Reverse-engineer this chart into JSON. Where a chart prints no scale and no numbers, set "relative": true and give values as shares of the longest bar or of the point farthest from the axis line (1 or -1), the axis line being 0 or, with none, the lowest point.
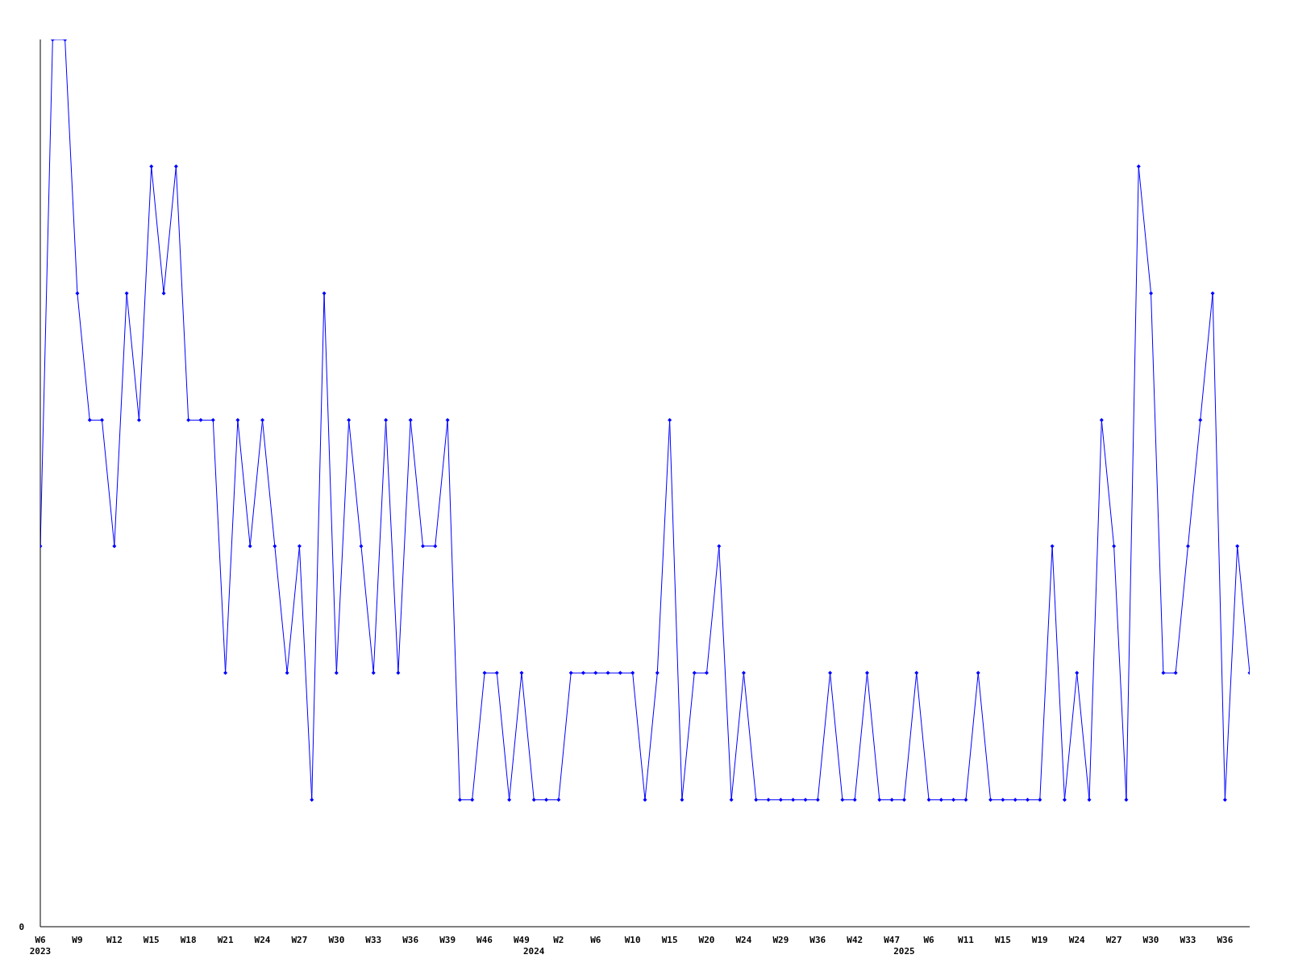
{
  "chart_data": {
    "type": "line",
    "relative": true,
    "marker": "diamond",
    "line_style": "solid",
    "categories": [
      "W6\n2023",
      null,
      null,
      "W9",
      null,
      null,
      "W12",
      null,
      null,
      "W15",
      null,
      null,
      "W18",
      null,
      null,
      "W21",
      null,
      null,
      "W24",
      null,
      null,
      "W27",
      null,
      null,
      "W30",
      null,
      null,
      "W33",
      null,
      null,
      "W36",
      null,
      null,
      "W39",
      null,
      null,
      "W46",
      null,
      null,
      "W49",
      "\n2024",
      null,
      "W2",
      null,
      null,
      "W6",
      null,
      null,
      "W10",
      null,
      null,
      "W15",
      null,
      null,
      "W20",
      null,
      null,
      "W24",
      null,
      null,
      "W29",
      null,
      null,
      "W36",
      null,
      null,
      "W42",
      null,
      null,
      "W47",
      "\n2025",
      null,
      "W6",
      null,
      null,
      "W11",
      null,
      null,
      "W15",
      null,
      null,
      "W19",
      null,
      null,
      "W24",
      null,
      null,
      "W27",
      null,
      null,
      "W30",
      null,
      null,
      "W33",
      null,
      null,
      "W36",
      null,
      null
    ],
    "series": [
      {
        "color": "#0000ff",
        "values": [
          0.429,
          1,
          1,
          0.714,
          0.571,
          0.571,
          0.429,
          0.714,
          0.571,
          0.857,
          0.714,
          0.857,
          0.571,
          0.571,
          0.571,
          0.286,
          0.571,
          0.429,
          0.571,
          0.429,
          0.286,
          0.429,
          0.143,
          0.714,
          0.286,
          0.571,
          0.429,
          0.286,
          0.571,
          0.286,
          0.571,
          0.429,
          0.429,
          0.571,
          0.143,
          0.143,
          0.286,
          0.286,
          0.143,
          0.286,
          0.143,
          0.143,
          0.143,
          0.286,
          0.286,
          0.286,
          0.286,
          0.286,
          0.286,
          0.143,
          0.286,
          0.571,
          0.143,
          0.286,
          0.286,
          0.429,
          0.143,
          0.286,
          0.143,
          0.143,
          0.143,
          0.143,
          0.143,
          0.143,
          0.286,
          0.143,
          0.143,
          0.286,
          0.143,
          0.143,
          0.143,
          0.286,
          0.143,
          0.143,
          0.143,
          0.143,
          0.286,
          0.143,
          0.143,
          0.143,
          0.143,
          0.143,
          0.429,
          0.143,
          0.286,
          0.143,
          0.571,
          0.429,
          0.143,
          0.857,
          0.714,
          0.286,
          0.286,
          0.429,
          0.571,
          0.714,
          0.143,
          0.429,
          0.286
        ]
      }
    ],
    "annotations": [
      "0"
    ]
  }
}
